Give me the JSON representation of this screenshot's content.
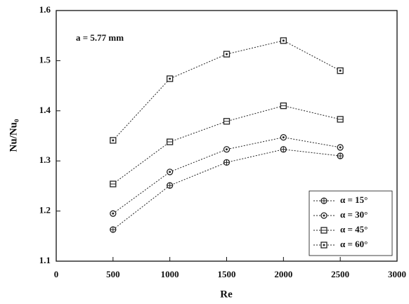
{
  "chart_data": {
    "type": "line",
    "x_label": "Re",
    "y_label": "Nu/Nu₀",
    "annotation": "a = 5.77 mm",
    "x": [
      500,
      1000,
      1500,
      2000,
      2500
    ],
    "series": [
      {
        "name": "α = 15°",
        "color": "#222222",
        "marker": "circle-plus",
        "values": [
          1.163,
          1.251,
          1.297,
          1.323,
          1.31
        ]
      },
      {
        "name": "α = 30°",
        "color": "#222222",
        "marker": "circle-dot",
        "values": [
          1.195,
          1.278,
          1.323,
          1.347,
          1.327
        ]
      },
      {
        "name": "α = 45°",
        "color": "#222222",
        "marker": "square-minus",
        "values": [
          1.254,
          1.338,
          1.379,
          1.41,
          1.383
        ]
      },
      {
        "name": "α = 60°",
        "color": "#222222",
        "marker": "square-dot",
        "values": [
          1.341,
          1.464,
          1.513,
          1.54,
          1.48
        ]
      }
    ],
    "xlim": [
      0,
      3000
    ],
    "xticks": [
      0,
      500,
      1000,
      1500,
      2000,
      2500,
      3000
    ],
    "ylim": [
      1.1,
      1.6
    ],
    "yticks": [
      1.1,
      1.2,
      1.3,
      1.4,
      1.5,
      1.6
    ],
    "legend": "lower-right"
  }
}
